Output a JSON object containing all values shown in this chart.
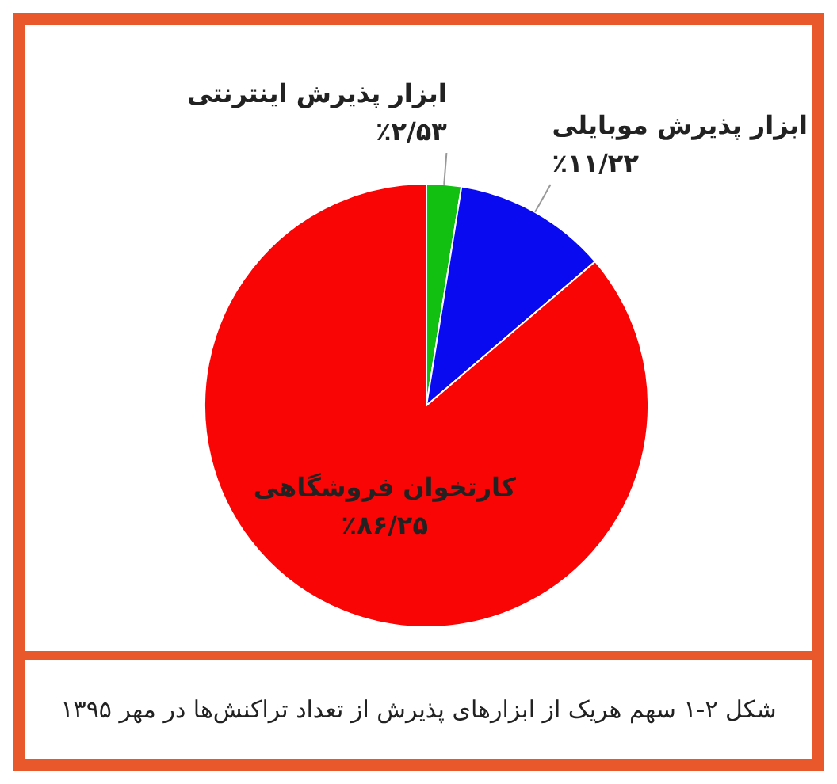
{
  "chart_data": {
    "type": "pie",
    "categories": [
      "ابزار پذیرش اینترنتی",
      "ابزار پذیرش موبایلی",
      "کارتخوان فروشگاهی"
    ],
    "values": [
      2.53,
      11.22,
      86.25
    ],
    "colors": [
      "#11c011",
      "#0a0af0",
      "#fa0505"
    ],
    "value_labels": [
      "٪۲/۵۳",
      "٪۱۱/۲۲",
      "٪۸۶/۲۵"
    ],
    "annotations": [
      "شکل ۲-۱ سهم هریک از ابزارهای پذیرش از تعداد تراکنش‌ها در مهر ۱۳۹۵"
    ]
  }
}
